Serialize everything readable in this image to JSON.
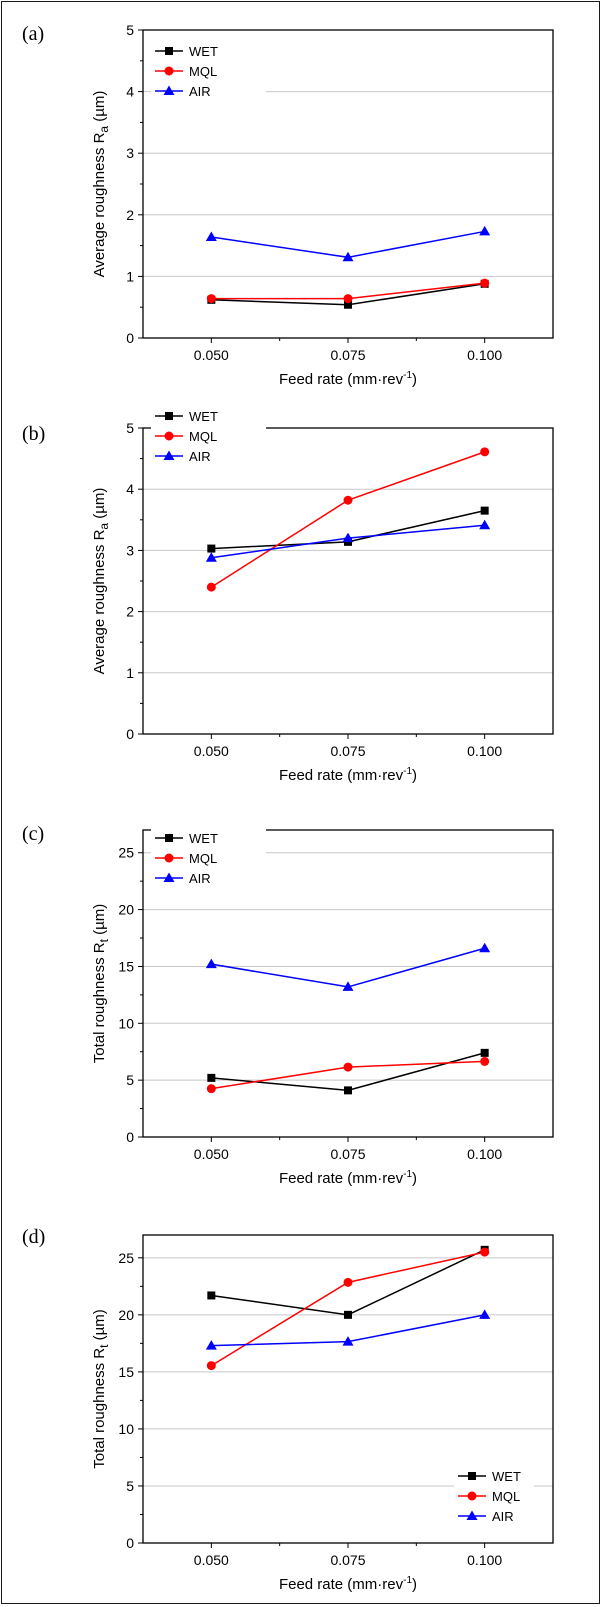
{
  "chart_data": [
    {
      "type": "line",
      "panel_label": "(a)",
      "title": "",
      "xlabel": "Feed rate (mm·rev⁻¹)",
      "xlabel_main": "Feed rate (mm·rev",
      "xlabel_sup": "-1",
      "xlabel_tail": ")",
      "ylabel": "Average roughness Ra (µm)",
      "ylabel_main": "Average roughness  R",
      "ylabel_sub": "a",
      "ylabel_unit": " (µm)",
      "x": [
        0.05,
        0.075,
        0.1
      ],
      "x_ticks": [
        "0.050",
        "0.075",
        "0.100"
      ],
      "xlim": [
        0.0375,
        0.1125
      ],
      "ylim": [
        0,
        5
      ],
      "y_ticks": [
        "0",
        "1",
        "2",
        "3",
        "4",
        "5"
      ],
      "grid": true,
      "legend_position": "top-left",
      "series": [
        {
          "name": "WET",
          "color": "#000000",
          "marker": "square",
          "values": [
            0.62,
            0.54,
            0.88
          ]
        },
        {
          "name": "MQL",
          "color": "#ff0000",
          "marker": "circle",
          "values": [
            0.64,
            0.64,
            0.89
          ]
        },
        {
          "name": "AIR",
          "color": "#0000ff",
          "marker": "triangle",
          "values": [
            1.64,
            1.31,
            1.73
          ]
        }
      ]
    },
    {
      "type": "line",
      "panel_label": "(b)",
      "title": "",
      "xlabel": "Feed rate (mm·rev⁻¹)",
      "xlabel_main": "Feed rate (mm·rev",
      "xlabel_sup": "-1",
      "xlabel_tail": ")",
      "ylabel": "Average roughness Ra (µm)",
      "ylabel_main": "Average roughness  R",
      "ylabel_sub": "a",
      "ylabel_unit": " (µm)",
      "x": [
        0.05,
        0.075,
        0.1
      ],
      "x_ticks": [
        "0.050",
        "0.075",
        "0.100"
      ],
      "xlim": [
        0.0375,
        0.1125
      ],
      "ylim": [
        0,
        5
      ],
      "y_ticks": [
        "0",
        "1",
        "2",
        "3",
        "4",
        "5"
      ],
      "grid": true,
      "legend_position": "top-left",
      "series": [
        {
          "name": "WET",
          "color": "#000000",
          "marker": "square",
          "values": [
            3.03,
            3.14,
            3.65
          ]
        },
        {
          "name": "MQL",
          "color": "#ff0000",
          "marker": "circle",
          "values": [
            2.4,
            3.82,
            4.61
          ]
        },
        {
          "name": "AIR",
          "color": "#0000ff",
          "marker": "triangle",
          "values": [
            2.88,
            3.2,
            3.41
          ]
        }
      ]
    },
    {
      "type": "line",
      "panel_label": "(c)",
      "title": "",
      "xlabel": "Feed rate (mm·rev⁻¹)",
      "xlabel_main": "Feed rate (mm·rev",
      "xlabel_sup": "-1",
      "xlabel_tail": ")",
      "ylabel": "Total roughness Rt (µm)",
      "ylabel_main": "Total roughness  R",
      "ylabel_sub": "t",
      "ylabel_unit": " (µm)",
      "x": [
        0.05,
        0.075,
        0.1
      ],
      "x_ticks": [
        "0.050",
        "0.075",
        "0.100"
      ],
      "xlim": [
        0.0375,
        0.1125
      ],
      "ylim": [
        0,
        27
      ],
      "y_ticks": [
        "0",
        "5",
        "10",
        "15",
        "20",
        "25"
      ],
      "grid": true,
      "legend_position": "top-left",
      "series": [
        {
          "name": "WET",
          "color": "#000000",
          "marker": "square",
          "values": [
            5.2,
            4.1,
            7.4
          ]
        },
        {
          "name": "MQL",
          "color": "#ff0000",
          "marker": "circle",
          "values": [
            4.25,
            6.15,
            6.65
          ]
        },
        {
          "name": "AIR",
          "color": "#0000ff",
          "marker": "triangle",
          "values": [
            15.2,
            13.2,
            16.6
          ]
        }
      ]
    },
    {
      "type": "line",
      "panel_label": "(d)",
      "title": "",
      "xlabel": "Feed rate (mm·rev⁻¹)",
      "xlabel_main": "Feed rate (mm·rev",
      "xlabel_sup": "-1",
      "xlabel_tail": ")",
      "ylabel": "Total roughness Rt (µm)",
      "ylabel_main": "Total roughness  R",
      "ylabel_sub": "t",
      "ylabel_unit": " (µm)",
      "x": [
        0.05,
        0.075,
        0.1
      ],
      "x_ticks": [
        "0.050",
        "0.075",
        "0.100"
      ],
      "xlim": [
        0.0375,
        0.1125
      ],
      "ylim": [
        0,
        27
      ],
      "y_ticks": [
        "0",
        "5",
        "10",
        "15",
        "20",
        "25"
      ],
      "grid": true,
      "legend_position": "bottom-right",
      "series": [
        {
          "name": "WET",
          "color": "#000000",
          "marker": "square",
          "values": [
            21.7,
            20.0,
            25.7
          ]
        },
        {
          "name": "MQL",
          "color": "#ff0000",
          "marker": "circle",
          "values": [
            15.55,
            22.85,
            25.5
          ]
        },
        {
          "name": "AIR",
          "color": "#0000ff",
          "marker": "triangle",
          "values": [
            17.3,
            17.65,
            20.0
          ]
        }
      ]
    }
  ]
}
